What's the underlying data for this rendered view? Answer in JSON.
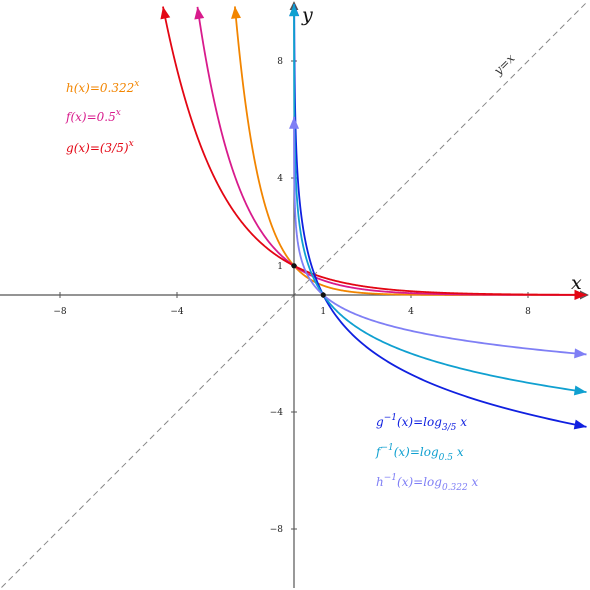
{
  "chart_data": {
    "type": "line",
    "title": "",
    "xlabel": "x",
    "ylabel": "y",
    "xlim": [
      -10,
      10
    ],
    "ylim": [
      -10,
      10
    ],
    "grid": false,
    "x_ticks": [
      -8,
      -4,
      1,
      4,
      8
    ],
    "y_ticks": [
      -8,
      -4,
      1,
      4,
      8
    ],
    "identity_line": {
      "label": "y=x"
    },
    "series": [
      {
        "id": "h",
        "name": "h(x)=0.322^x",
        "color": "#f28500",
        "kind": "exp",
        "base": 0.322
      },
      {
        "id": "f",
        "name": "f(x)=0.5^x",
        "color": "#d81b8c",
        "kind": "exp",
        "base": 0.5
      },
      {
        "id": "g",
        "name": "g(x)=(3/5)^x",
        "color": "#e30613",
        "kind": "exp",
        "base": 0.6
      },
      {
        "id": "ginv",
        "name": "g^{-1}(x)=log_{3/5} x",
        "color": "#1020e0",
        "kind": "log",
        "base": 0.6
      },
      {
        "id": "finv",
        "name": "f^{-1}(x)=log_{0.5} x",
        "color": "#10a0d0",
        "kind": "log",
        "base": 0.5
      },
      {
        "id": "hinv",
        "name": "h^{-1}(x)=log_{0.322} x",
        "color": "#7f7ff5",
        "kind": "log",
        "base": 0.322
      }
    ],
    "points": [
      {
        "x": 0,
        "y": 1
      },
      {
        "x": 1,
        "y": 0
      }
    ]
  },
  "legend_text": {
    "h": {
      "fn": "h",
      "arg": "(x)=0.322",
      "sup": "x"
    },
    "f": {
      "fn": "f",
      "arg": "(x)=0.5",
      "sup": "x"
    },
    "g": {
      "fn": "g",
      "arg": "(x)=(3/5)",
      "sup": "x"
    },
    "ginv": {
      "fn": "g",
      "sup": "−1",
      "arg": "(x)=log",
      "sub": "3/5",
      "tail": " x"
    },
    "finv": {
      "fn": "f",
      "sup": "−1",
      "arg": "(x)=log",
      "sub": "0.5",
      "tail": " x"
    },
    "hinv": {
      "fn": "h",
      "sup": "−1",
      "arg": "(x)=log",
      "sub": "0.322",
      "tail": " x"
    }
  }
}
